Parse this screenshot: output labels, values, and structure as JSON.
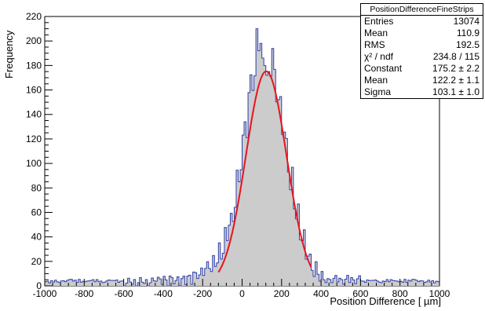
{
  "chart_data": {
    "type": "histogram",
    "title": "",
    "xlabel": "Position Difference [ µm]",
    "ylabel": "Frequency",
    "xlim": [
      -1000,
      1000
    ],
    "ylim": [
      0,
      220
    ],
    "xticks": [
      "-1000",
      "-800",
      "-600",
      "-400",
      "-200",
      "0",
      "200",
      "400",
      "600",
      "800",
      "1000"
    ],
    "yticks": [
      "0",
      "20",
      "40",
      "60",
      "80",
      "100",
      "120",
      "140",
      "160",
      "180",
      "200",
      "220"
    ],
    "bin_width": 10,
    "histogram_color": "#2e3ea8",
    "fill_color": "#cccccc",
    "fit": {
      "function": "gaus",
      "color": "#e8141c",
      "constant": 175.2,
      "mean": 122.2,
      "sigma": 103.1,
      "range": [
        -120,
        350
      ]
    },
    "stats_box": {
      "title": "PositionDifferenceFineStrips",
      "rows": [
        {
          "label": "Entries",
          "value": "13074"
        },
        {
          "label": "Mean",
          "value": "110.9"
        },
        {
          "label": "RMS",
          "value": "192.5"
        },
        {
          "label": "χ² / ndf",
          "value": "234.8 / 115"
        },
        {
          "label": "Constant",
          "value": "175.2 ± 2.2"
        },
        {
          "label": "Mean",
          "value": "122.2 ± 1.1"
        },
        {
          "label": "Sigma",
          "value": "103.1 ± 1.0"
        }
      ]
    },
    "tail_level": 4,
    "peak_values": [
      {
        "x": 75,
        "y": 210
      },
      {
        "x": 85,
        "y": 192
      },
      {
        "x": 95,
        "y": 198
      },
      {
        "x": 105,
        "y": 186
      },
      {
        "x": 115,
        "y": 180
      },
      {
        "x": 125,
        "y": 172
      },
      {
        "x": 135,
        "y": 175
      }
    ]
  }
}
